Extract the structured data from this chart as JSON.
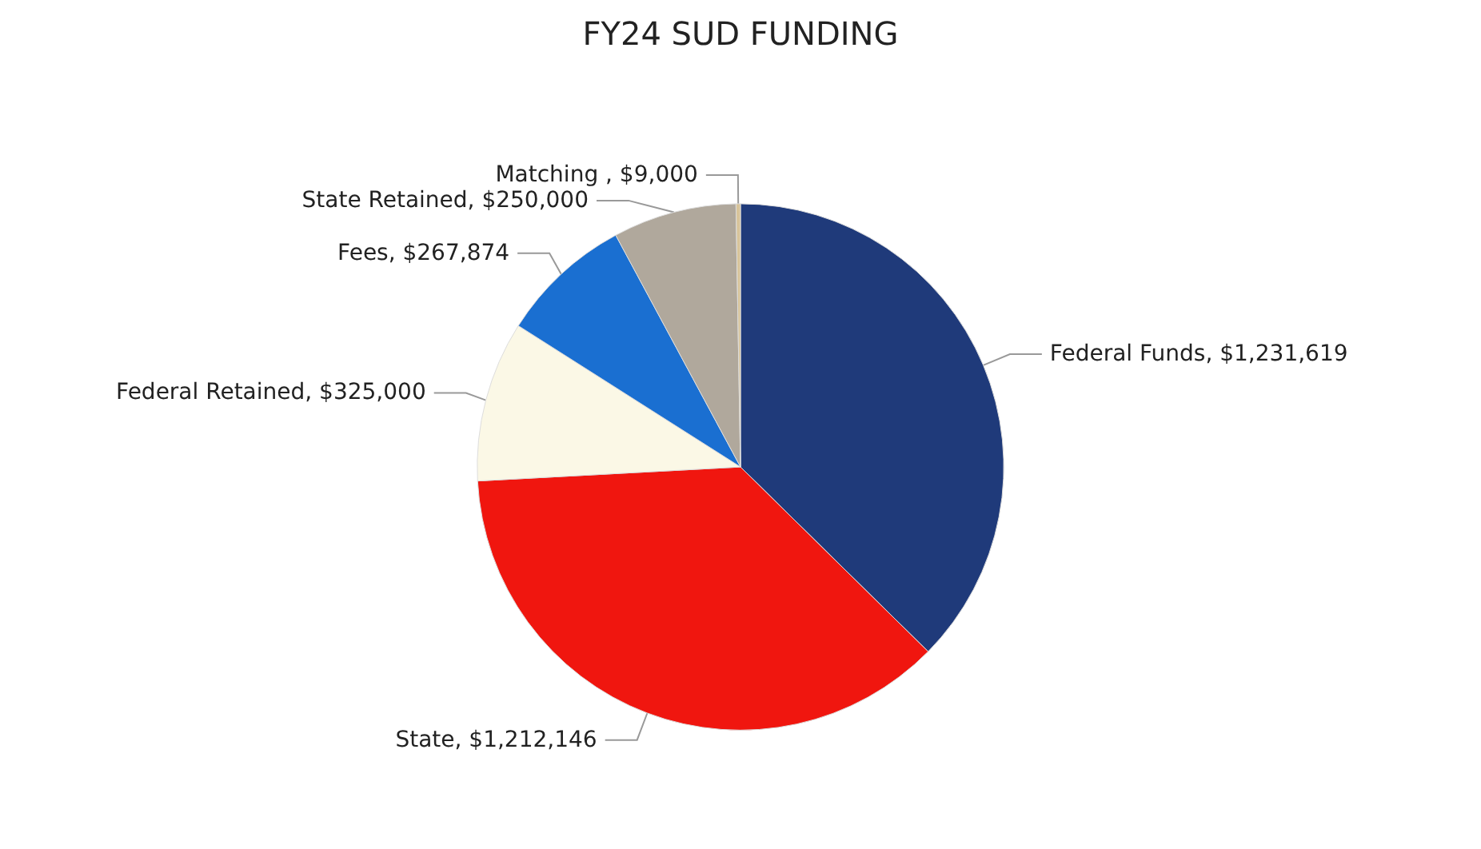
{
  "chart_data": {
    "type": "pie",
    "title": "FY24 SUD FUNDING",
    "categories": [
      "Federal Funds",
      "State",
      "Federal Retained",
      "Fees",
      "State Retained",
      "Matching "
    ],
    "values": [
      1231619,
      1212146,
      325000,
      267874,
      250000,
      9000
    ],
    "value_labels": [
      "$1,231,619",
      "$1,212,146",
      "$325,000",
      "$267,874",
      "$250,000",
      "$9,000"
    ],
    "colors": [
      "#1f3a7a",
      "#f0160f",
      "#fbf8e6",
      "#1a6fd1",
      "#b0a89c",
      "#d8c49a"
    ],
    "legend": false
  }
}
